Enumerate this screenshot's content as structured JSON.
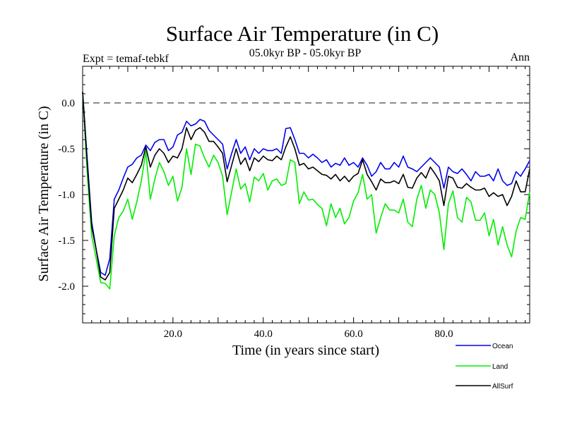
{
  "chart_data": {
    "type": "line",
    "title": "Surface Air Temperature (in C)",
    "subtitle": "05.0kyr BP - 05.0kyr BP",
    "left_label": "Expt = temaf-tebkf",
    "right_label": "Ann",
    "xlabel": "Time (in years since start)",
    "ylabel": "Surface Air Temperature (in C)",
    "xlim": [
      0,
      99
    ],
    "ylim": [
      -2.4,
      0.4
    ],
    "x_ticks": [
      20,
      40,
      60,
      80
    ],
    "x_tick_labels": [
      "20.0",
      "40.0",
      "60.0",
      "80.0"
    ],
    "y_ticks": [
      0.0,
      -0.5,
      -1.0,
      -1.5,
      -2.0
    ],
    "y_tick_labels": [
      "0.0",
      "-0.5",
      "-1.0",
      "-1.5",
      "-2.0"
    ],
    "reference_line": 0.0,
    "x": [
      0,
      1,
      2,
      3,
      4,
      5,
      6,
      7,
      8,
      9,
      10,
      11,
      12,
      13,
      14,
      15,
      16,
      17,
      18,
      19,
      20,
      21,
      22,
      23,
      24,
      25,
      26,
      27,
      28,
      29,
      30,
      31,
      32,
      33,
      34,
      35,
      36,
      37,
      38,
      39,
      40,
      41,
      42,
      43,
      44,
      45,
      46,
      47,
      48,
      49,
      50,
      51,
      52,
      53,
      54,
      55,
      56,
      57,
      58,
      59,
      60,
      61,
      62,
      63,
      64,
      65,
      66,
      67,
      68,
      69,
      70,
      71,
      72,
      73,
      74,
      75,
      76,
      77,
      78,
      79,
      80,
      81,
      82,
      83,
      84,
      85,
      86,
      87,
      88,
      89,
      90,
      91,
      92,
      93,
      94,
      95,
      96,
      97,
      98,
      99
    ],
    "series": [
      {
        "name": "Ocean",
        "color": "#0000ee",
        "values": [
          0.12,
          -0.6,
          -1.3,
          -1.6,
          -1.85,
          -1.88,
          -1.7,
          -1.05,
          -0.95,
          -0.82,
          -0.7,
          -0.67,
          -0.6,
          -0.57,
          -0.46,
          -0.52,
          -0.43,
          -0.4,
          -0.4,
          -0.52,
          -0.48,
          -0.35,
          -0.32,
          -0.2,
          -0.25,
          -0.23,
          -0.18,
          -0.2,
          -0.3,
          -0.35,
          -0.4,
          -0.45,
          -0.72,
          -0.55,
          -0.4,
          -0.55,
          -0.48,
          -0.62,
          -0.5,
          -0.55,
          -0.5,
          -0.52,
          -0.52,
          -0.5,
          -0.55,
          -0.28,
          -0.27,
          -0.4,
          -0.55,
          -0.55,
          -0.6,
          -0.56,
          -0.6,
          -0.65,
          -0.62,
          -0.7,
          -0.66,
          -0.68,
          -0.6,
          -0.68,
          -0.65,
          -0.7,
          -0.6,
          -0.68,
          -0.8,
          -0.75,
          -0.65,
          -0.72,
          -0.72,
          -0.65,
          -0.7,
          -0.58,
          -0.7,
          -0.72,
          -0.75,
          -0.7,
          -0.65,
          -0.6,
          -0.65,
          -0.7,
          -0.93,
          -0.7,
          -0.75,
          -0.77,
          -0.72,
          -0.78,
          -0.85,
          -0.75,
          -0.8,
          -0.8,
          -0.78,
          -0.85,
          -0.72,
          -0.85,
          -0.9,
          -0.88,
          -0.75,
          -0.8,
          -0.72,
          -0.63
        ]
      },
      {
        "name": "Land",
        "color": "#00ee00",
        "values": [
          0.12,
          -0.75,
          -1.45,
          -1.7,
          -1.96,
          -1.97,
          -2.03,
          -1.45,
          -1.25,
          -1.18,
          -1.05,
          -1.27,
          -1.08,
          -0.85,
          -0.53,
          -1.05,
          -0.83,
          -0.65,
          -0.75,
          -0.9,
          -0.8,
          -1.07,
          -0.92,
          -0.5,
          -0.78,
          -0.45,
          -0.47,
          -0.6,
          -0.7,
          -0.57,
          -0.65,
          -0.8,
          -1.22,
          -0.97,
          -0.72,
          -0.94,
          -0.88,
          -1.08,
          -0.81,
          -0.85,
          -0.77,
          -0.95,
          -0.85,
          -0.83,
          -0.9,
          -0.88,
          -0.62,
          -0.65,
          -1.1,
          -0.97,
          -1.06,
          -1.05,
          -1.11,
          -1.15,
          -1.34,
          -1.1,
          -1.25,
          -1.15,
          -1.32,
          -1.25,
          -1.07,
          -0.98,
          -0.78,
          -1.05,
          -1.0,
          -1.42,
          -1.25,
          -1.1,
          -1.17,
          -1.17,
          -1.2,
          -1.05,
          -1.3,
          -1.35,
          -1.05,
          -0.9,
          -1.15,
          -0.95,
          -1.0,
          -1.2,
          -1.6,
          -1.1,
          -0.96,
          -1.25,
          -1.3,
          -1.03,
          -1.08,
          -1.28,
          -1.28,
          -1.2,
          -1.45,
          -1.27,
          -1.55,
          -1.35,
          -1.55,
          -1.68,
          -1.4,
          -1.25,
          -1.27,
          -0.97
        ]
      },
      {
        "name": "AllSurf",
        "color": "#000000",
        "values": [
          0.12,
          -0.65,
          -1.35,
          -1.6,
          -1.9,
          -1.93,
          -1.85,
          -1.15,
          -1.05,
          -0.95,
          -0.82,
          -0.87,
          -0.78,
          -0.68,
          -0.48,
          -0.7,
          -0.57,
          -0.5,
          -0.55,
          -0.65,
          -0.58,
          -0.6,
          -0.5,
          -0.27,
          -0.4,
          -0.3,
          -0.27,
          -0.32,
          -0.42,
          -0.42,
          -0.48,
          -0.55,
          -0.86,
          -0.68,
          -0.5,
          -0.67,
          -0.6,
          -0.74,
          -0.6,
          -0.64,
          -0.58,
          -0.62,
          -0.63,
          -0.58,
          -0.62,
          -0.48,
          -0.37,
          -0.5,
          -0.68,
          -0.66,
          -0.72,
          -0.7,
          -0.74,
          -0.78,
          -0.79,
          -0.83,
          -0.78,
          -0.85,
          -0.8,
          -0.86,
          -0.8,
          -0.77,
          -0.62,
          -0.78,
          -0.86,
          -0.95,
          -0.83,
          -0.87,
          -0.87,
          -0.85,
          -0.88,
          -0.78,
          -0.92,
          -0.93,
          -0.82,
          -0.76,
          -0.82,
          -0.7,
          -0.77,
          -0.85,
          -1.12,
          -0.8,
          -0.82,
          -0.92,
          -0.93,
          -0.88,
          -0.92,
          -0.95,
          -0.95,
          -0.93,
          -1.02,
          -0.98,
          -1.02,
          -1.0,
          -1.12,
          -1.02,
          -0.85,
          -0.97,
          -0.97,
          -0.72
        ]
      }
    ],
    "legend_position": "bottom-right"
  }
}
